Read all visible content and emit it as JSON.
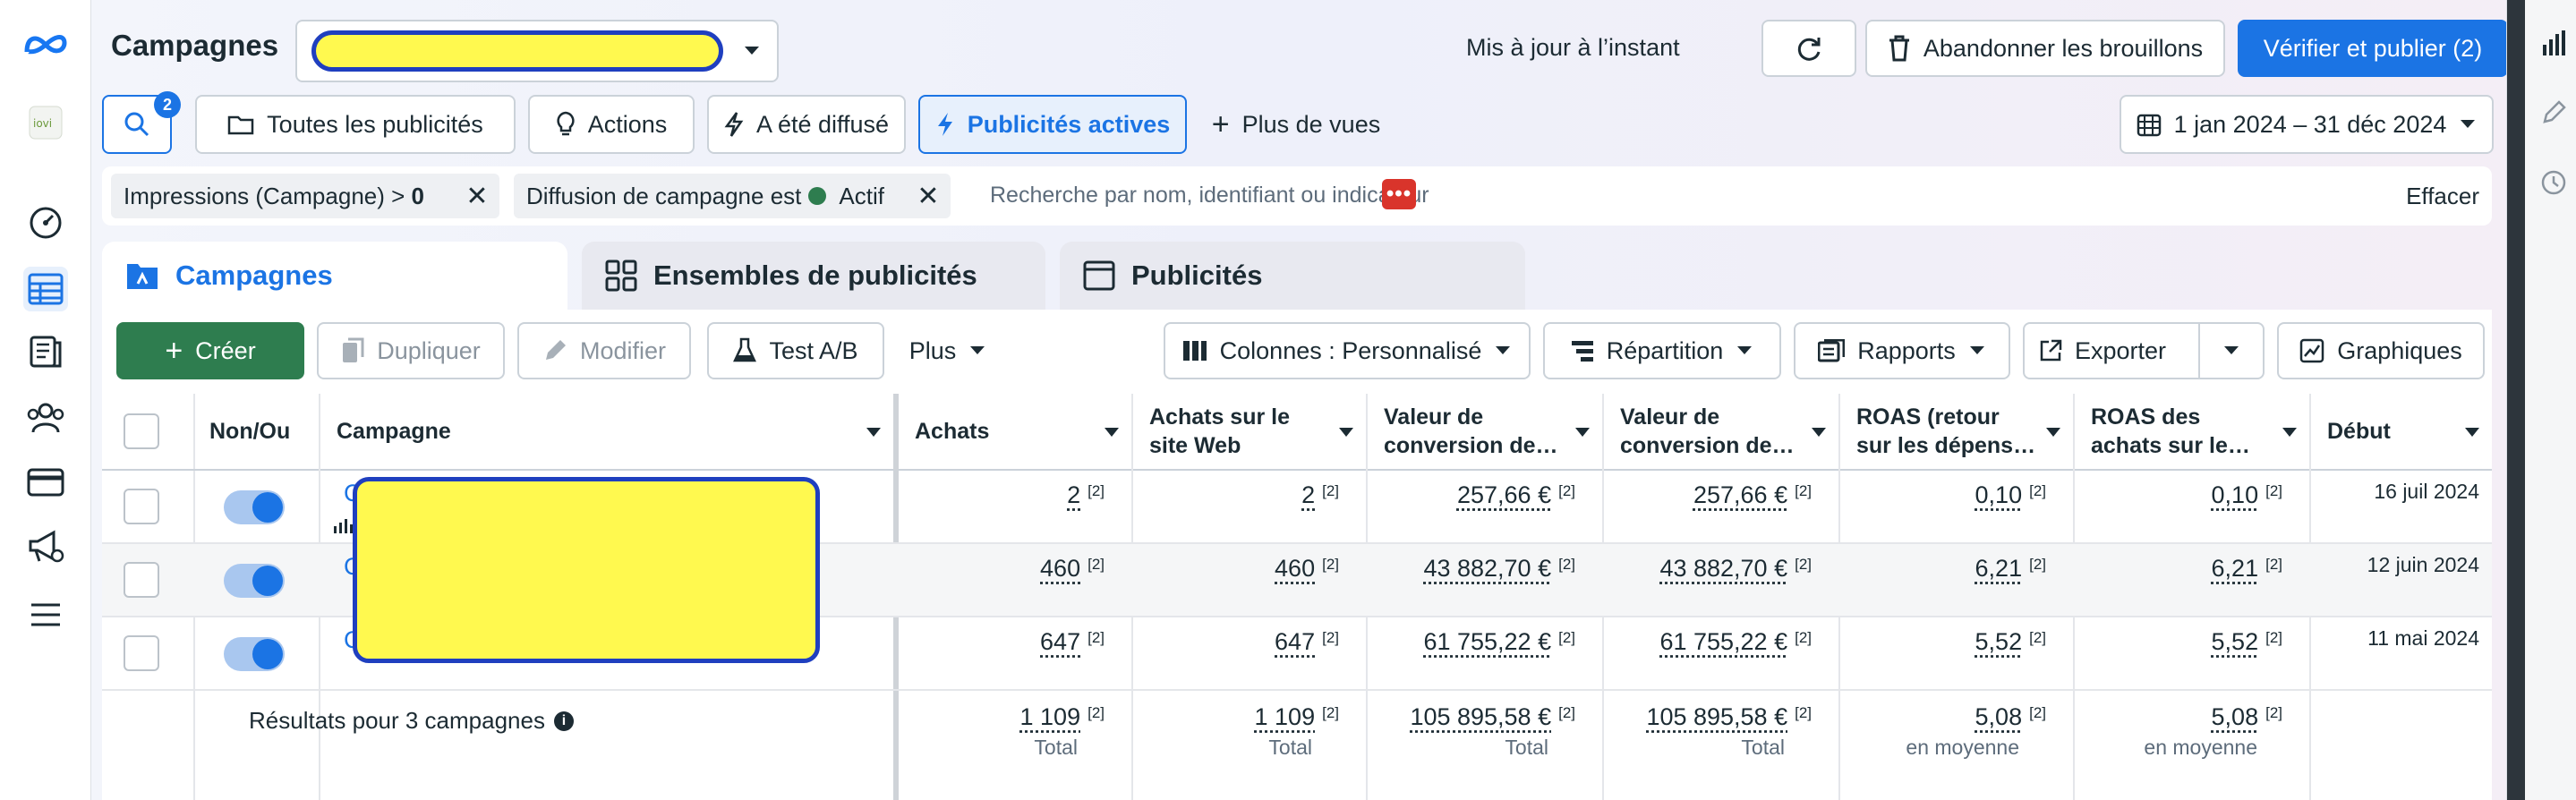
{
  "header": {
    "title": "Campagnes",
    "status": "Mis à jour à l’instant",
    "discard_label": "Abandonner les brouillons",
    "publish_label": "Vérifier et publier (2)"
  },
  "toolbar": {
    "search_badge": "2",
    "views": [
      "Toutes les publicités",
      "Actions",
      "A été diffusé",
      "Publicités actives",
      "Plus de vues"
    ],
    "date_range": "1 jan 2024 – 31 déc 2024"
  },
  "filters": {
    "chip1_label": "Impressions (Campagne) > ",
    "chip1_value": "0",
    "chip2_label": "Diffusion de campagne est",
    "chip2_value": "Actif",
    "search_placeholder": "Recherche par nom, identifiant ou indicateur",
    "clear_label": "Effacer"
  },
  "tabs": [
    "Campagnes",
    "Ensembles de publicités",
    "Publicités"
  ],
  "actions": {
    "create": "Créer",
    "duplicate": "Dupliquer",
    "edit": "Modifier",
    "abtest": "Test A/B",
    "more": "Plus",
    "columns": "Colonnes : Personnalisé",
    "breakdown": "Répartition",
    "reports": "Rapports",
    "export": "Exporter",
    "charts": "Graphiques"
  },
  "table": {
    "headers": {
      "onoff": "Non/Ou",
      "campaign": "Campagne",
      "c1": "Achats",
      "c2a": "Achats sur le",
      "c2b": "site Web",
      "c3a": "Valeur de",
      "c3b": "conversion de…",
      "c4a": "Valeur de",
      "c4b": "conversion de…",
      "c5a": "ROAS (retour",
      "c5b": "sur les dépens…",
      "c6a": "ROAS des",
      "c6b": "achats sur le…",
      "c7": "Début"
    },
    "rows": [
      {
        "name": "C",
        "c1": "2",
        "c2": "2",
        "c3": "257,66 €",
        "c4": "257,66 €",
        "c5": "0,10",
        "c6": "0,10",
        "start": "16 juil 2024"
      },
      {
        "name": "C",
        "c1": "460",
        "c2": "460",
        "c3": "43 882,70 €",
        "c4": "43 882,70 €",
        "c5": "6,21",
        "c6": "6,21",
        "start": "12 juin 2024"
      },
      {
        "name": "C",
        "c1": "647",
        "c2": "647",
        "c3": "61 755,22 €",
        "c4": "61 755,22 €",
        "c5": "5,52",
        "c6": "5,52",
        "start": "11 mai 2024"
      }
    ],
    "footnote": "[2]",
    "summary": {
      "label": "Résultats pour 3 campagnes",
      "c1": "1 109",
      "c2": "1 109",
      "c3": "105 895,58 €",
      "c4": "105 895,58 €",
      "c5": "5,08",
      "c6": "5,08",
      "total": "Total",
      "avg": "en moyenne"
    }
  },
  "colors": {
    "accent": "#1b74e4",
    "create": "#2e7d4f",
    "redaction": "#fff94f",
    "redaction_border": "#1f3fbf"
  }
}
